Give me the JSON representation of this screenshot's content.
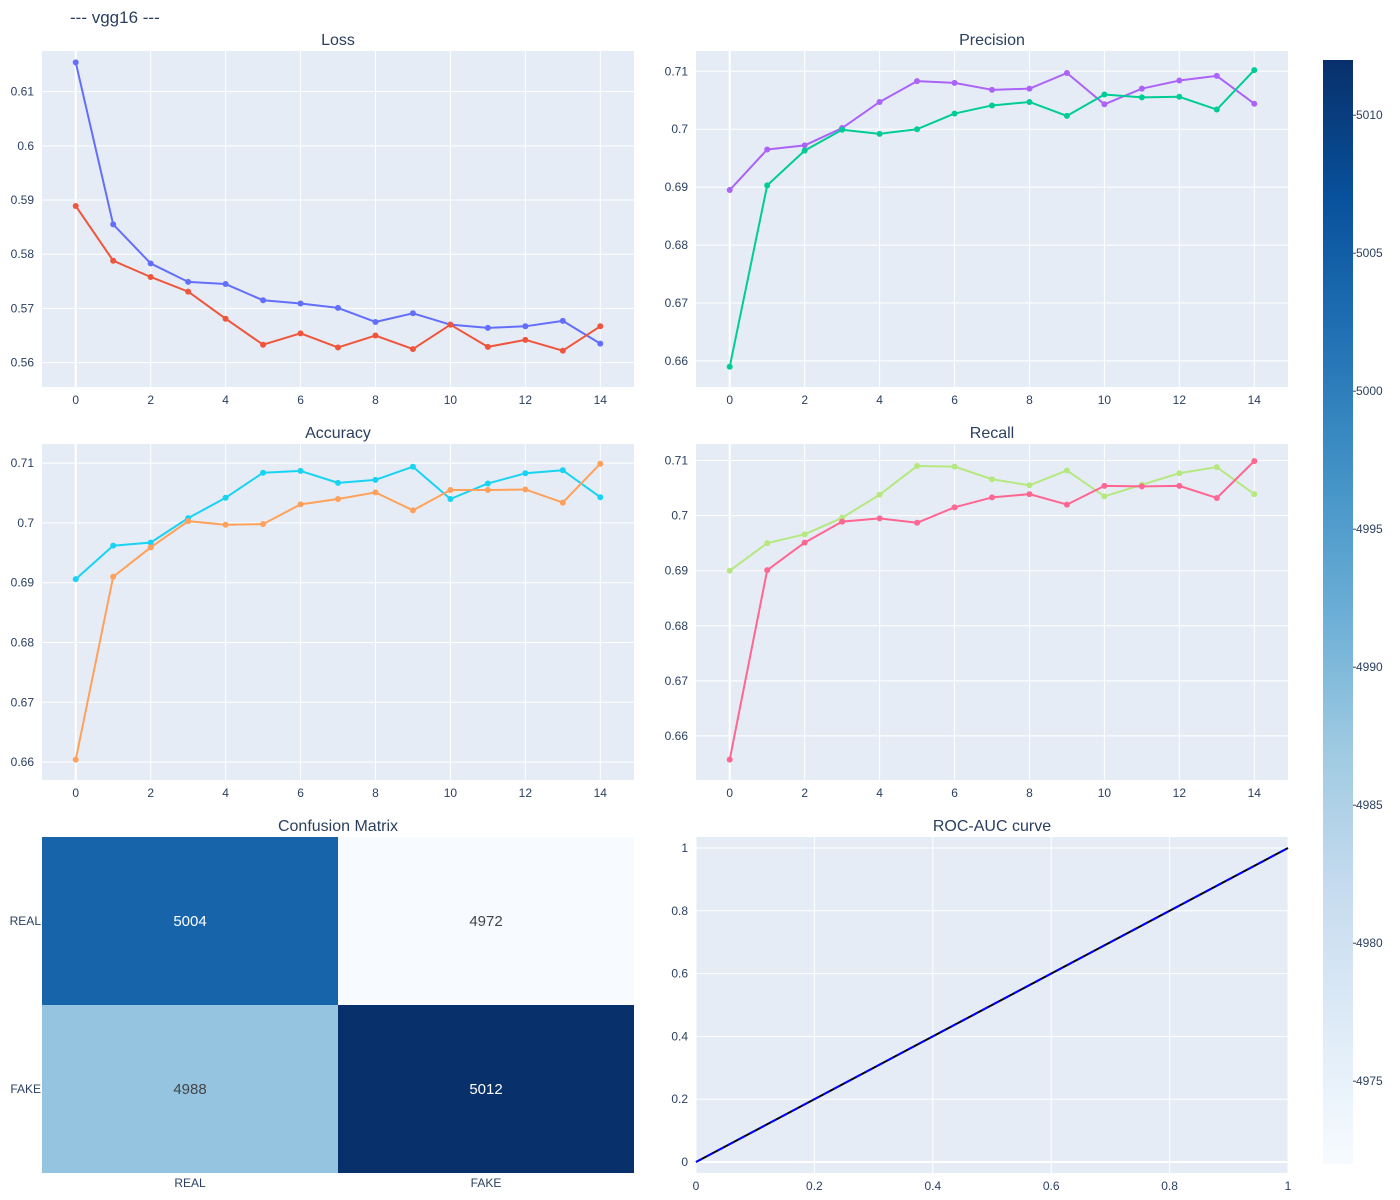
{
  "figure": {
    "title": "--- vgg16 ---"
  },
  "colors": {
    "plot_bg": "#e5ecf6",
    "grid": "#ffffff",
    "text": "#2a3f5f",
    "series_1": "#636efa",
    "series_2": "#ef553b",
    "series_3": "#ab63fa",
    "series_4": "#00cc96",
    "series_5": "#19d3f3",
    "series_6": "#ffa15a",
    "series_7": "#b6e880",
    "series_8": "#ff6692",
    "roc_line": "#000000",
    "roc_dash": "#0000ff"
  },
  "chart_data": [
    {
      "id": "loss",
      "type": "line",
      "title": "Loss",
      "x": [
        0,
        1,
        2,
        3,
        4,
        5,
        6,
        7,
        8,
        9,
        10,
        11,
        12,
        13,
        14
      ],
      "xlim": [
        -0.9,
        14.9
      ],
      "xticks": [
        0,
        2,
        4,
        6,
        8,
        10,
        12,
        14
      ],
      "ylim": [
        0.5555,
        0.6175
      ],
      "yticks": [
        0.56,
        0.57,
        0.58,
        0.59,
        0.6,
        0.61
      ],
      "yticklabels": [
        "0.56",
        "0.57",
        "0.58",
        "0.59",
        "0.6",
        "0.61"
      ],
      "grid": true,
      "series": [
        {
          "color": "#636efa",
          "values": [
            0.6154,
            0.5855,
            0.5783,
            0.5749,
            0.5745,
            0.5715,
            0.5709,
            0.5701,
            0.5675,
            0.5691,
            0.567,
            0.5664,
            0.5667,
            0.5677,
            0.5635
          ]
        },
        {
          "color": "#ef553b",
          "values": [
            0.5889,
            0.5788,
            0.5758,
            0.5731,
            0.5681,
            0.5633,
            0.5654,
            0.5628,
            0.565,
            0.5625,
            0.567,
            0.5629,
            0.5642,
            0.5622,
            0.5667
          ]
        }
      ]
    },
    {
      "id": "precision",
      "type": "line",
      "title": "Precision",
      "x": [
        0,
        1,
        2,
        3,
        4,
        5,
        6,
        7,
        8,
        9,
        10,
        11,
        12,
        13,
        14
      ],
      "xlim": [
        -0.9,
        14.9
      ],
      "xticks": [
        0,
        2,
        4,
        6,
        8,
        10,
        12,
        14
      ],
      "ylim": [
        0.6555,
        0.7135
      ],
      "yticks": [
        0.66,
        0.67,
        0.68,
        0.69,
        0.7,
        0.71
      ],
      "yticklabels": [
        "0.66",
        "0.67",
        "0.68",
        "0.69",
        "0.7",
        "0.71"
      ],
      "grid": true,
      "series": [
        {
          "color": "#ab63fa",
          "values": [
            0.6895,
            0.6965,
            0.6972,
            0.7002,
            0.7047,
            0.7083,
            0.708,
            0.7068,
            0.707,
            0.7097,
            0.7043,
            0.707,
            0.7084,
            0.7092,
            0.7044
          ]
        },
        {
          "color": "#00cc96",
          "values": [
            0.659,
            0.6903,
            0.6963,
            0.6999,
            0.6992,
            0.7,
            0.7027,
            0.7041,
            0.7047,
            0.7023,
            0.706,
            0.7055,
            0.7056,
            0.7034,
            0.7102
          ]
        }
      ]
    },
    {
      "id": "accuracy",
      "type": "line",
      "title": "Accuracy",
      "x": [
        0,
        1,
        2,
        3,
        4,
        5,
        6,
        7,
        8,
        9,
        10,
        11,
        12,
        13,
        14
      ],
      "xlim": [
        -0.9,
        14.9
      ],
      "xticks": [
        0,
        2,
        4,
        6,
        8,
        10,
        12,
        14
      ],
      "ylim": [
        0.657,
        0.7132
      ],
      "yticks": [
        0.66,
        0.67,
        0.68,
        0.69,
        0.7,
        0.71
      ],
      "yticklabels": [
        "0.66",
        "0.67",
        "0.68",
        "0.69",
        "0.7",
        "0.71"
      ],
      "grid": true,
      "series": [
        {
          "color": "#19d3f3",
          "values": [
            0.6906,
            0.6962,
            0.6967,
            0.7008,
            0.7042,
            0.7084,
            0.7087,
            0.7067,
            0.7072,
            0.7094,
            0.704,
            0.7066,
            0.7083,
            0.7088,
            0.7043
          ]
        },
        {
          "color": "#ffa15a",
          "values": [
            0.6604,
            0.691,
            0.6959,
            0.7003,
            0.6997,
            0.6998,
            0.7031,
            0.704,
            0.7051,
            0.7021,
            0.7055,
            0.7055,
            0.7056,
            0.7034,
            0.7099
          ]
        }
      ]
    },
    {
      "id": "recall",
      "type": "line",
      "title": "Recall",
      "x": [
        0,
        1,
        2,
        3,
        4,
        5,
        6,
        7,
        8,
        9,
        10,
        11,
        12,
        13,
        14
      ],
      "xlim": [
        -0.9,
        14.9
      ],
      "xticks": [
        0,
        2,
        4,
        6,
        8,
        10,
        12,
        14
      ],
      "ylim": [
        0.652,
        0.713
      ],
      "yticks": [
        0.66,
        0.67,
        0.68,
        0.69,
        0.7,
        0.71
      ],
      "yticklabels": [
        "0.66",
        "0.67",
        "0.68",
        "0.69",
        "0.7",
        "0.71"
      ],
      "grid": true,
      "series": [
        {
          "color": "#b6e880",
          "values": [
            0.69,
            0.695,
            0.6966,
            0.6996,
            0.7038,
            0.709,
            0.7089,
            0.7066,
            0.7055,
            0.7082,
            0.7035,
            0.7056,
            0.7077,
            0.7088,
            0.7039
          ]
        },
        {
          "color": "#ff6692",
          "values": [
            0.6557,
            0.6901,
            0.6951,
            0.6989,
            0.6995,
            0.6987,
            0.7015,
            0.7033,
            0.7039,
            0.702,
            0.7054,
            0.7053,
            0.7054,
            0.7032,
            0.7099
          ]
        }
      ]
    },
    {
      "id": "confusion",
      "type": "heatmap",
      "title": "Confusion Matrix",
      "x_labels": [
        "REAL",
        "FAKE"
      ],
      "y_labels": [
        "REAL",
        "FAKE"
      ],
      "z": [
        [
          5004,
          4972
        ],
        [
          4988,
          5012
        ]
      ],
      "colorscale": "Blues",
      "zmin": 4972,
      "zmax": 5012,
      "colorbar_ticks": [
        4975,
        4980,
        4985,
        4990,
        4995,
        5000,
        5005,
        5010
      ]
    },
    {
      "id": "roc",
      "type": "line",
      "title": "ROC-AUC curve",
      "xlim": [
        0,
        1
      ],
      "ylim": [
        -0.035,
        1.035
      ],
      "xticks": [
        0,
        0.2,
        0.4,
        0.6,
        0.8,
        1
      ],
      "xticklabels": [
        "0",
        "0.2",
        "0.4",
        "0.6",
        "0.8",
        "1"
      ],
      "yticks": [
        0,
        0.2,
        0.4,
        0.6,
        0.8,
        1
      ],
      "yticklabels": [
        "0",
        "0.2",
        "0.4",
        "0.6",
        "0.8",
        "1"
      ],
      "grid": true,
      "series": [
        {
          "color": "#000000",
          "style": "solid",
          "x": [
            0,
            1
          ],
          "values": [
            0,
            1
          ]
        },
        {
          "color": "#0000ff",
          "style": "dash",
          "x": [
            0,
            1
          ],
          "values": [
            0,
            1
          ]
        }
      ]
    }
  ]
}
